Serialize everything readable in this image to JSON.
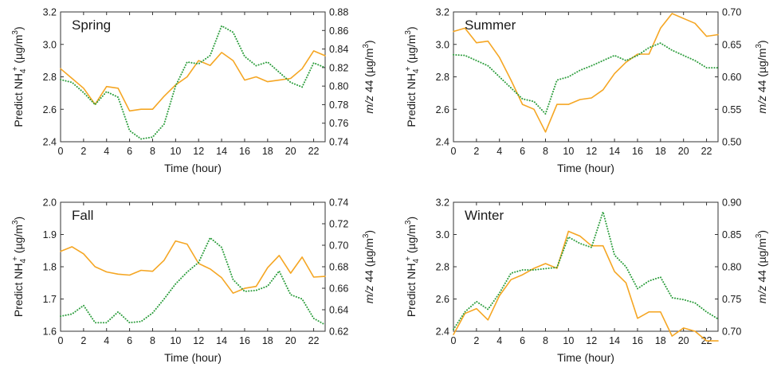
{
  "chart_data": [
    {
      "type": "line",
      "title": "Spring",
      "xlabel": "Time (hour)",
      "ylabel_left": {
        "main": "Predict NH",
        "sub": "4",
        "sup": "+",
        "unit_pre": " (µg/m",
        "unit_sup": "3",
        "unit_post": ")"
      },
      "ylabel_right": {
        "italic": "m/z",
        "rest": " 44 (µg/m",
        "unit_sup": "3",
        "unit_post": ")"
      },
      "x": [
        0,
        1,
        2,
        3,
        4,
        5,
        6,
        7,
        8,
        9,
        10,
        11,
        12,
        13,
        14,
        15,
        16,
        17,
        18,
        19,
        20,
        21,
        22,
        23
      ],
      "xlim": [
        0,
        23
      ],
      "xticks": [
        "0",
        "2",
        "4",
        "6",
        "8",
        "10",
        "12",
        "14",
        "16",
        "18",
        "20",
        "22"
      ],
      "ylim_left": [
        2.4,
        3.2
      ],
      "yticks_left": [
        "2.4",
        "2.6",
        "2.8",
        "3.0",
        "3.2"
      ],
      "ylim_right": [
        0.74,
        0.88
      ],
      "yticks_right": [
        "0.74",
        "0.76",
        "0.78",
        "0.80",
        "0.82",
        "0.84",
        "0.86",
        "0.88"
      ],
      "series": [
        {
          "name": "Predict NH4+",
          "axis": "left",
          "color": "#f5a623",
          "style": "solid",
          "values": [
            2.85,
            2.79,
            2.73,
            2.63,
            2.74,
            2.73,
            2.59,
            2.6,
            2.6,
            2.68,
            2.75,
            2.8,
            2.9,
            2.87,
            2.95,
            2.9,
            2.78,
            2.8,
            2.77,
            2.78,
            2.79,
            2.85,
            2.96,
            2.93
          ]
        },
        {
          "name": "m/z 44",
          "axis": "right",
          "color": "#2e9e3e",
          "style": "dotted",
          "values": [
            0.807,
            0.804,
            0.793,
            0.78,
            0.794,
            0.788,
            0.752,
            0.743,
            0.745,
            0.759,
            0.8,
            0.826,
            0.824,
            0.833,
            0.865,
            0.858,
            0.832,
            0.822,
            0.826,
            0.815,
            0.804,
            0.799,
            0.825,
            0.82
          ]
        }
      ]
    },
    {
      "type": "line",
      "title": "Summer",
      "xlabel": "Time (hour)",
      "ylabel_left": {
        "main": "Predict NH",
        "sub": "4",
        "sup": "+",
        "unit_pre": " (µg/m",
        "unit_sup": "3",
        "unit_post": ")"
      },
      "ylabel_right": {
        "italic": "m/z",
        "rest": " 44 (µg/m",
        "unit_sup": "3",
        "unit_post": ")"
      },
      "x": [
        0,
        1,
        2,
        3,
        4,
        5,
        6,
        7,
        8,
        9,
        10,
        11,
        12,
        13,
        14,
        15,
        16,
        17,
        18,
        19,
        20,
        21,
        22,
        23
      ],
      "xlim": [
        0,
        23
      ],
      "xticks": [
        "0",
        "2",
        "4",
        "6",
        "8",
        "10",
        "12",
        "14",
        "16",
        "18",
        "20",
        "22"
      ],
      "ylim_left": [
        2.4,
        3.2
      ],
      "yticks_left": [
        "2.4",
        "2.6",
        "2.8",
        "3.0",
        "3.2"
      ],
      "ylim_right": [
        0.5,
        0.7
      ],
      "yticks_right": [
        "0.50",
        "0.55",
        "0.60",
        "0.65",
        "0.70"
      ],
      "series": [
        {
          "name": "Predict NH4+",
          "axis": "left",
          "color": "#f5a623",
          "style": "solid",
          "values": [
            3.08,
            3.1,
            3.01,
            3.02,
            2.92,
            2.78,
            2.63,
            2.6,
            2.46,
            2.63,
            2.63,
            2.66,
            2.67,
            2.72,
            2.82,
            2.89,
            2.94,
            2.94,
            3.1,
            3.19,
            3.16,
            3.13,
            3.05,
            3.06
          ]
        },
        {
          "name": "m/z 44",
          "axis": "right",
          "color": "#2e9e3e",
          "style": "dotted",
          "values": [
            0.634,
            0.633,
            0.625,
            0.617,
            0.6,
            0.583,
            0.566,
            0.562,
            0.543,
            0.595,
            0.6,
            0.61,
            0.617,
            0.625,
            0.633,
            0.625,
            0.633,
            0.645,
            0.652,
            0.641,
            0.633,
            0.625,
            0.614,
            0.614
          ]
        }
      ]
    },
    {
      "type": "line",
      "title": "Fall",
      "xlabel": "Time (hour)",
      "ylabel_left": {
        "main": "Predict NH",
        "sub": "4",
        "sup": "+",
        "unit_pre": " (µg/m",
        "unit_sup": "3",
        "unit_post": ")"
      },
      "ylabel_right": {
        "italic": "m/z",
        "rest": " 44 (µg/m",
        "unit_sup": "3",
        "unit_post": ")"
      },
      "x": [
        0,
        1,
        2,
        3,
        4,
        5,
        6,
        7,
        8,
        9,
        10,
        11,
        12,
        13,
        14,
        15,
        16,
        17,
        18,
        19,
        20,
        21,
        22,
        23
      ],
      "xlim": [
        0,
        23
      ],
      "xticks": [
        "0",
        "2",
        "4",
        "6",
        "8",
        "10",
        "12",
        "14",
        "16",
        "18",
        "20",
        "22"
      ],
      "ylim_left": [
        1.6,
        2.0
      ],
      "yticks_left": [
        "1.6",
        "1.7",
        "1.8",
        "1.9",
        "2.0"
      ],
      "ylim_right": [
        0.62,
        0.74
      ],
      "yticks_right": [
        "0.62",
        "0.64",
        "0.66",
        "0.68",
        "0.70",
        "0.72",
        "0.74"
      ],
      "series": [
        {
          "name": "Predict NH4+",
          "axis": "left",
          "color": "#f5a623",
          "style": "solid",
          "values": [
            1.848,
            1.862,
            1.84,
            1.8,
            1.784,
            1.777,
            1.774,
            1.789,
            1.786,
            1.82,
            1.88,
            1.87,
            1.81,
            1.793,
            1.766,
            1.718,
            1.733,
            1.739,
            1.797,
            1.835,
            1.78,
            1.83,
            1.768,
            1.77
          ]
        },
        {
          "name": "m/z 44",
          "axis": "right",
          "color": "#2e9e3e",
          "style": "dotted",
          "values": [
            0.634,
            0.636,
            0.644,
            0.628,
            0.628,
            0.638,
            0.628,
            0.629,
            0.637,
            0.65,
            0.664,
            0.675,
            0.684,
            0.707,
            0.698,
            0.668,
            0.657,
            0.658,
            0.662,
            0.676,
            0.654,
            0.65,
            0.632,
            0.626
          ]
        }
      ]
    },
    {
      "type": "line",
      "title": "Winter",
      "xlabel": "Time (hour)",
      "ylabel_left": {
        "main": "Predict NH",
        "sub": "4",
        "sup": "+",
        "unit_pre": " (µg/m",
        "unit_sup": "3",
        "unit_post": ")"
      },
      "ylabel_right": {
        "italic": "m/z",
        "rest": " 44 (µg/m",
        "unit_sup": "3",
        "unit_post": ")"
      },
      "x": [
        0,
        1,
        2,
        3,
        4,
        5,
        6,
        7,
        8,
        9,
        10,
        11,
        12,
        13,
        14,
        15,
        16,
        17,
        18,
        19,
        20,
        21,
        22,
        23
      ],
      "xlim": [
        0,
        23
      ],
      "xticks": [
        "0",
        "2",
        "4",
        "6",
        "8",
        "10",
        "12",
        "14",
        "16",
        "18",
        "20",
        "22"
      ],
      "ylim_left": [
        2.4,
        3.2
      ],
      "yticks_left": [
        "2.4",
        "2.6",
        "2.8",
        "3.0",
        "3.2"
      ],
      "ylim_right": [
        0.7,
        0.9
      ],
      "yticks_right": [
        "0.70",
        "0.75",
        "0.80",
        "0.85",
        "0.90"
      ],
      "series": [
        {
          "name": "Predict NH4+",
          "axis": "left",
          "color": "#f5a623",
          "style": "solid",
          "values": [
            2.38,
            2.51,
            2.54,
            2.47,
            2.62,
            2.72,
            2.75,
            2.79,
            2.82,
            2.79,
            3.02,
            2.99,
            2.93,
            2.93,
            2.77,
            2.7,
            2.48,
            2.52,
            2.52,
            2.37,
            2.42,
            2.4,
            2.34,
            2.34
          ]
        },
        {
          "name": "m/z 44",
          "axis": "right",
          "color": "#2e9e3e",
          "style": "dotted",
          "values": [
            0.703,
            0.73,
            0.746,
            0.734,
            0.759,
            0.79,
            0.795,
            0.795,
            0.797,
            0.799,
            0.846,
            0.836,
            0.83,
            0.885,
            0.818,
            0.8,
            0.766,
            0.778,
            0.784,
            0.752,
            0.749,
            0.744,
            0.73,
            0.719
          ]
        }
      ]
    }
  ]
}
